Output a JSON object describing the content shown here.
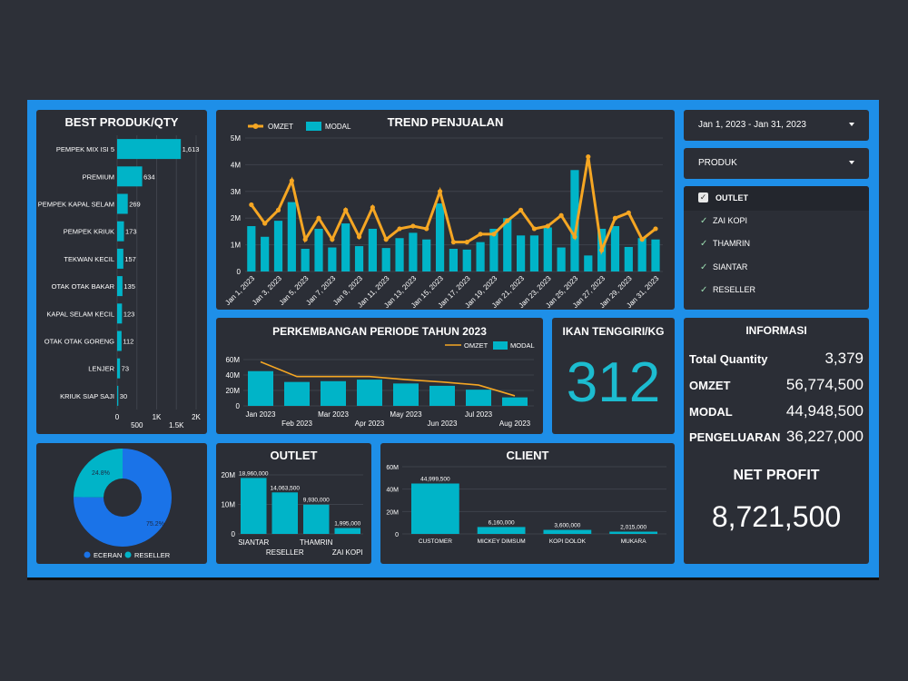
{
  "best_produk": {
    "title": "BEST PRODUK/QTY",
    "items": [
      {
        "label": "PEMPEK MIX ISI 5",
        "value": 1613,
        "text": "1,613"
      },
      {
        "label": "PREMIUM",
        "value": 634,
        "text": "634"
      },
      {
        "label": "PEMPEK KAPAL SELAM",
        "value": 269,
        "text": "269"
      },
      {
        "label": "PEMPEK KRIUK",
        "value": 173,
        "text": "173"
      },
      {
        "label": "TEKWAN KECIL",
        "value": 157,
        "text": "157"
      },
      {
        "label": "OTAK OTAK BAKAR",
        "value": 135,
        "text": "135"
      },
      {
        "label": "KAPAL SELAM KECIL",
        "value": 123,
        "text": "123"
      },
      {
        "label": "OTAK OTAK GORENG",
        "value": 112,
        "text": "112"
      },
      {
        "label": "LENJER",
        "value": 73,
        "text": "73"
      },
      {
        "label": "KRIUK SIAP SAJI",
        "value": 30,
        "text": "30"
      }
    ],
    "ticks_upper": [
      "0",
      "1K",
      "2K"
    ],
    "ticks_lower": [
      "500",
      "1.5K"
    ]
  },
  "trend": {
    "title": "TREND PENJUALAN",
    "legend": [
      "OMZET",
      "MODAL"
    ],
    "yticks": [
      "0",
      "1M",
      "2M",
      "3M",
      "4M",
      "5M"
    ],
    "xlabels": [
      "Jan 1, 2023",
      "Jan 3, 2023",
      "Jan 5, 2023",
      "Jan 7, 2023",
      "Jan 9, 2023",
      "Jan 11, 2023",
      "Jan 13, 2023",
      "Jan 15, 2023",
      "Jan 17, 2023",
      "Jan 19, 2023",
      "Jan 21, 2023",
      "Jan 23, 2023",
      "Jan 25, 2023",
      "Jan 27, 2023",
      "Jan 29, 2023",
      "Jan 31, 2023"
    ]
  },
  "perkembangan": {
    "title": "PERKEMBANGAN PERIODE TAHUN 2023",
    "legend": [
      "OMZET",
      "MODAL"
    ],
    "yticks": [
      "0",
      "20M",
      "40M",
      "60M"
    ],
    "xlabels_top": [
      "Jan 2023",
      "Mar 2023",
      "May 2023",
      "Jul 2023"
    ],
    "xlabels_bottom": [
      "Feb 2023",
      "Apr 2023",
      "Jun 2023",
      "Aug 2023"
    ]
  },
  "ikan": {
    "title": "IKAN TENGGIRI/KG",
    "value": "312"
  },
  "selects": {
    "date": "Jan 1, 2023 - Jan 31, 2023",
    "produk": "PRODUK"
  },
  "outlet_filter": {
    "header": "OUTLET",
    "items": [
      "ZAI KOPI",
      "THAMRIN",
      "SIANTAR",
      "RESELLER"
    ]
  },
  "informasi": {
    "title": "INFORMASI",
    "rows": [
      {
        "k": "Total Quantity",
        "v": "3,379"
      },
      {
        "k": "OMZET",
        "v": "56,774,500"
      },
      {
        "k": "MODAL",
        "v": "44,948,500"
      },
      {
        "k": "PENGELUARAN",
        "v": "36,227,000"
      }
    ],
    "net_label": "NET PROFIT",
    "net_value": "8,721,500"
  },
  "donut": {
    "legend": [
      "ECERAN",
      "RESELLER"
    ],
    "labels": [
      "75.2%",
      "24.8%"
    ]
  },
  "outlet_chart": {
    "title": "OUTLET",
    "yticks": [
      "0",
      "10M",
      "20M"
    ],
    "xlabels_top": [
      "SIANTAR",
      "THAMRIN"
    ],
    "xlabels_bottom": [
      "RESELLER",
      "ZAI KOPI"
    ]
  },
  "client_chart": {
    "title": "CLIENT",
    "yticks": [
      "0",
      "20M",
      "40M",
      "60M"
    ]
  },
  "colors": {
    "teal": "#00b4c8",
    "orange": "#f5a623",
    "blue": "#1a73e8",
    "panel": "#2b2e36",
    "frame": "#1e8fe8"
  },
  "chart_data": [
    {
      "type": "bar",
      "title": "BEST PRODUK/QTY",
      "orientation": "horizontal",
      "categories": [
        "PEMPEK MIX ISI 5",
        "PREMIUM",
        "PEMPEK KAPAL SELAM",
        "PEMPEK KRIUK",
        "TEKWAN KECIL",
        "OTAK OTAK BAKAR",
        "KAPAL SELAM KECIL",
        "OTAK OTAK GORENG",
        "LENJER",
        "KRIUK SIAP SAJI"
      ],
      "values": [
        1613,
        634,
        269,
        173,
        157,
        135,
        123,
        112,
        73,
        30
      ],
      "xlim": [
        0,
        2000
      ]
    },
    {
      "type": "line",
      "title": "TREND PENJUALAN",
      "ylim": [
        0,
        5000000
      ],
      "x": [
        "Jan 1, 2023",
        "Jan 2, 2023",
        "Jan 3, 2023",
        "Jan 4, 2023",
        "Jan 5, 2023",
        "Jan 6, 2023",
        "Jan 7, 2023",
        "Jan 8, 2023",
        "Jan 9, 2023",
        "Jan 10, 2023",
        "Jan 11, 2023",
        "Jan 12, 2023",
        "Jan 13, 2023",
        "Jan 14, 2023",
        "Jan 15, 2023",
        "Jan 16, 2023",
        "Jan 17, 2023",
        "Jan 18, 2023",
        "Jan 19, 2023",
        "Jan 20, 2023",
        "Jan 21, 2023",
        "Jan 22, 2023",
        "Jan 23, 2023",
        "Jan 24, 2023",
        "Jan 25, 2023",
        "Jan 26, 2023",
        "Jan 27, 2023",
        "Jan 28, 2023",
        "Jan 29, 2023",
        "Jan 30, 2023",
        "Jan 31, 2023"
      ],
      "series": [
        {
          "name": "OMZET",
          "values": [
            2500000,
            1800000,
            2300000,
            3400000,
            1200000,
            2000000,
            1200000,
            2300000,
            1300000,
            2400000,
            1200000,
            1600000,
            1700000,
            1600000,
            3000000,
            1100000,
            1100000,
            1400000,
            1400000,
            1900000,
            2300000,
            1600000,
            1700000,
            2100000,
            1300000,
            4300000,
            800000,
            2000000,
            2200000,
            1200000,
            1600000
          ]
        },
        {
          "name": "MODAL",
          "values": [
            1700000,
            1300000,
            1900000,
            2600000,
            850000,
            1600000,
            900000,
            1800000,
            950000,
            1600000,
            880000,
            1250000,
            1450000,
            1200000,
            2550000,
            850000,
            820000,
            1100000,
            1600000,
            2000000,
            1350000,
            1350000,
            1650000,
            900000,
            3800000,
            600000,
            1600000,
            1700000,
            920000,
            1250000,
            1200000
          ]
        }
      ]
    },
    {
      "type": "bar",
      "title": "PERKEMBANGAN PERIODE TAHUN 2023",
      "ylim": [
        0,
        60000000
      ],
      "categories": [
        "Jan 2023",
        "Feb 2023",
        "Mar 2023",
        "Apr 2023",
        "May 2023",
        "Jun 2023",
        "Jul 2023",
        "Aug 2023"
      ],
      "series": [
        {
          "name": "MODAL",
          "values": [
            45000000,
            31000000,
            32000000,
            34000000,
            29000000,
            26000000,
            21000000,
            11000000
          ]
        },
        {
          "name": "OMZET",
          "values": [
            57000000,
            38000000,
            38000000,
            38000000,
            34000000,
            31000000,
            27000000,
            13000000
          ]
        }
      ]
    },
    {
      "type": "pie",
      "categories": [
        "ECERAN",
        "RESELLER"
      ],
      "values": [
        75.2,
        24.8
      ]
    },
    {
      "type": "bar",
      "title": "OUTLET",
      "ylim": [
        0,
        20000000
      ],
      "categories": [
        "SIANTAR",
        "RESELLER",
        "THAMRIN",
        "ZAI KOPI"
      ],
      "values": [
        18960000,
        14063500,
        9930000,
        1995000
      ],
      "labels": [
        "18,960,000",
        "14,063,500",
        "9,930,000",
        "1,995,000"
      ]
    },
    {
      "type": "bar",
      "title": "CLIENT",
      "ylim": [
        0,
        60000000
      ],
      "categories": [
        "CUSTOMER",
        "MICKEY DIMSUM",
        "KOPI DOLOK",
        "MUKARA"
      ],
      "values": [
        44999500,
        6160000,
        3600000,
        2015000
      ],
      "labels": [
        "44,999,500",
        "6,160,000",
        "3,600,000",
        "2,015,000"
      ]
    }
  ]
}
